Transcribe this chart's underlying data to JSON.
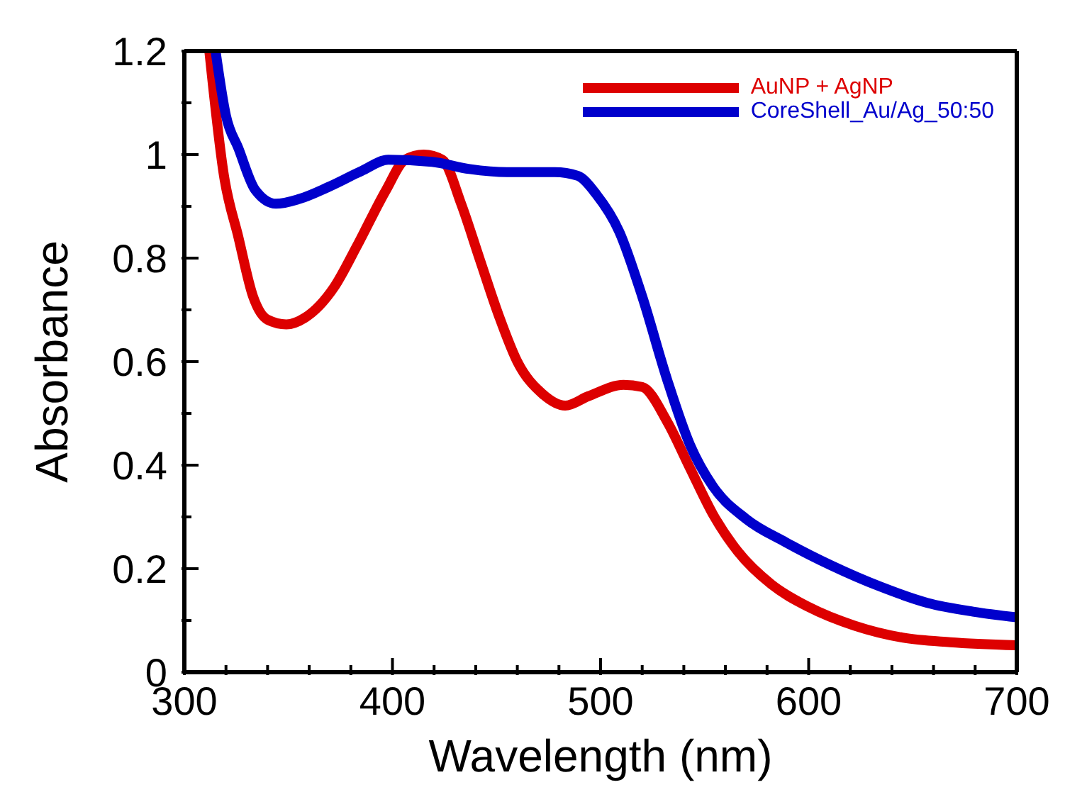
{
  "chart_data": {
    "type": "line",
    "xlabel": "Wavelength (nm)",
    "ylabel": "Absorbance",
    "xlim": [
      300,
      700
    ],
    "ylim": [
      0,
      1.2
    ],
    "xticks": [
      300,
      {
        "value": 320,
        "label": null
      },
      {
        "value": 340,
        "label": null
      },
      {
        "value": 360,
        "label": null
      },
      {
        "value": 380,
        "label": null
      },
      400,
      {
        "value": 420,
        "label": null
      },
      {
        "value": 440,
        "label": null
      },
      {
        "value": 460,
        "label": null
      },
      {
        "value": 480,
        "label": null
      },
      500,
      {
        "value": 520,
        "label": null
      },
      {
        "value": 540,
        "label": null
      },
      {
        "value": 560,
        "label": null
      },
      {
        "value": 580,
        "label": null
      },
      600,
      {
        "value": 620,
        "label": null
      },
      {
        "value": 640,
        "label": null
      },
      {
        "value": 660,
        "label": null
      },
      {
        "value": 680,
        "label": null
      },
      700
    ],
    "yticks": [
      0,
      {
        "value": 0.1,
        "label": null
      },
      0.2,
      {
        "value": 0.3,
        "label": null
      },
      0.4,
      {
        "value": 0.5,
        "label": null
      },
      0.6,
      {
        "value": 0.7,
        "label": null
      },
      0.8,
      {
        "value": 0.9,
        "label": null
      },
      1,
      {
        "value": 1.1,
        "label": null
      },
      1.2
    ],
    "legend": "top right",
    "series": [
      {
        "name": "AuNP + AgNP",
        "color": "#dd0000",
        "x": [
          312,
          319,
          326,
          333,
          340,
          349,
          358,
          372,
          383,
          397,
          406,
          415,
          424,
          433,
          442,
          451,
          460,
          472,
          483,
          494,
          511,
          520,
          532,
          543,
          554,
          566,
          582,
          600,
          622,
          645,
          668,
          700
        ],
        "values": [
          1.2,
          0.96,
          0.84,
          0.726,
          0.681,
          0.672,
          0.685,
          0.744,
          0.824,
          0.932,
          0.99,
          1.0,
          0.99,
          0.905,
          0.797,
          0.69,
          0.6,
          0.538,
          0.515,
          0.533,
          0.555,
          0.551,
          0.484,
          0.394,
          0.305,
          0.233,
          0.17,
          0.126,
          0.09,
          0.067,
          0.058,
          0.052
        ]
      },
      {
        "name": "CoreShell_Au/Ag_50:50",
        "color": "#0000cc",
        "x": [
          315,
          320,
          326,
          334,
          344,
          355,
          369,
          385,
          398,
          419,
          437,
          455,
          478,
          489,
          498,
          509,
          520,
          532,
          543,
          554,
          570,
          589,
          611,
          634,
          657,
          679,
          700
        ],
        "values": [
          1.2,
          1.075,
          1.012,
          0.932,
          0.905,
          0.914,
          0.937,
          0.968,
          0.99,
          0.986,
          0.972,
          0.966,
          0.966,
          0.959,
          0.923,
          0.851,
          0.726,
          0.565,
          0.439,
          0.359,
          0.296,
          0.251,
          0.206,
          0.166,
          0.134,
          0.117,
          0.106
        ]
      }
    ]
  }
}
